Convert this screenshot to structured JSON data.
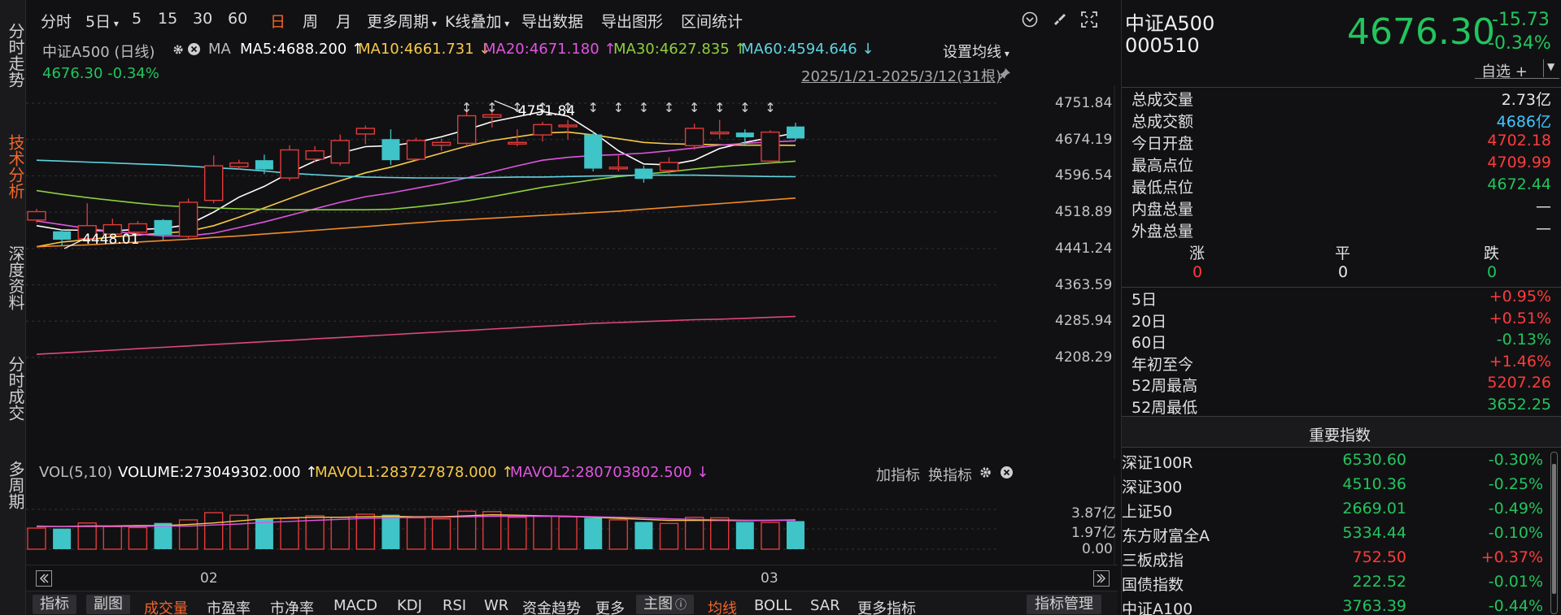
{
  "left_nav": [
    {
      "label": "分时走势"
    },
    {
      "label": "技术分析"
    },
    {
      "label": "深度资料"
    },
    {
      "label": "分时成交"
    },
    {
      "label": "多周期"
    }
  ],
  "toolbar": {
    "items": [
      "分时",
      "5日",
      "5",
      "15",
      "30",
      "60",
      "日",
      "周",
      "月",
      "更多周期",
      "K线叠加",
      "导出数据",
      "导出图形",
      "区间统计"
    ],
    "active": "日"
  },
  "chart_header": {
    "name": "中证A500 (日线)",
    "ma_label": "MA",
    "ma_items": [
      {
        "text": "MA5:4688.200 ↑",
        "color": "#ffffff"
      },
      {
        "text": "MA10:4661.731 ↓",
        "color": "#f7c948"
      },
      {
        "text": "MA20:4671.180 ↑",
        "color": "#e055e0"
      },
      {
        "text": "MA30:4627.835 ↑",
        "color": "#8fcf3c"
      },
      {
        "text": "MA60:4594.646 ↓",
        "color": "#5fd3e0"
      }
    ],
    "settings_label": "设置均线",
    "last_line": "4676.30 -0.34%",
    "range_label": "2025/1/21-2025/3/12(31根)"
  },
  "chart_data": {
    "type": "candlestick",
    "x_labels": [
      "02",
      "03"
    ],
    "y_ticks": [
      "4751.84",
      "4674.19",
      "4596.54",
      "4518.89",
      "4441.24",
      "4363.59",
      "4285.94",
      "4208.29"
    ],
    "ylim": [
      4208.29,
      4751.84
    ],
    "annotations": {
      "high": "4751.84",
      "low": "4448.01"
    },
    "candles": [
      {
        "o": 4502,
        "c": 4520,
        "h": 4526,
        "l": 4496
      },
      {
        "o": 4478,
        "c": 4460,
        "h": 4482,
        "l": 4448.01
      },
      {
        "o": 4462,
        "c": 4490,
        "h": 4538,
        "l": 4456
      },
      {
        "o": 4472,
        "c": 4492,
        "h": 4505,
        "l": 4468
      },
      {
        "o": 4476,
        "c": 4494,
        "h": 4500,
        "l": 4470
      },
      {
        "o": 4502,
        "c": 4470,
        "h": 4504,
        "l": 4458
      },
      {
        "o": 4467,
        "c": 4540,
        "h": 4548,
        "l": 4461
      },
      {
        "o": 4544,
        "c": 4618,
        "h": 4640,
        "l": 4538
      },
      {
        "o": 4616,
        "c": 4624,
        "h": 4631,
        "l": 4610
      },
      {
        "o": 4630,
        "c": 4610,
        "h": 4642,
        "l": 4600
      },
      {
        "o": 4592,
        "c": 4652,
        "h": 4662,
        "l": 4586
      },
      {
        "o": 4632,
        "c": 4650,
        "h": 4660,
        "l": 4626
      },
      {
        "o": 4624,
        "c": 4672,
        "h": 4685,
        "l": 4618
      },
      {
        "o": 4686,
        "c": 4698,
        "h": 4704,
        "l": 4664
      },
      {
        "o": 4675,
        "c": 4630,
        "h": 4696,
        "l": 4620
      },
      {
        "o": 4632,
        "c": 4672,
        "h": 4678,
        "l": 4628
      },
      {
        "o": 4662,
        "c": 4668,
        "h": 4676,
        "l": 4650
      },
      {
        "o": 4666,
        "c": 4725,
        "h": 4734,
        "l": 4660
      },
      {
        "o": 4722,
        "c": 4727,
        "h": 4751.84,
        "l": 4700
      },
      {
        "o": 4668,
        "c": 4668,
        "h": 4696,
        "l": 4660
      },
      {
        "o": 4684,
        "c": 4706,
        "h": 4712,
        "l": 4670
      },
      {
        "o": 4703,
        "c": 4705,
        "h": 4716,
        "l": 4674
      },
      {
        "o": 4685,
        "c": 4612,
        "h": 4692,
        "l": 4606
      },
      {
        "o": 4612,
        "c": 4615,
        "h": 4640,
        "l": 4606
      },
      {
        "o": 4612,
        "c": 4590,
        "h": 4618,
        "l": 4582
      },
      {
        "o": 4608,
        "c": 4625,
        "h": 4636,
        "l": 4600
      },
      {
        "o": 4661,
        "c": 4698,
        "h": 4708,
        "l": 4652
      },
      {
        "o": 4688,
        "c": 4690,
        "h": 4716,
        "l": 4675
      },
      {
        "o": 4689,
        "c": 4679,
        "h": 4696,
        "l": 4660
      },
      {
        "o": 4628,
        "c": 4690,
        "h": 4694,
        "l": 4622
      },
      {
        "o": 4702,
        "c": 4676.3,
        "h": 4709.99,
        "l": 4672.44
      }
    ],
    "ma_series": [
      {
        "name": "MA5",
        "color": "#ffffff",
        "values": [
          4490,
          4481,
          4480,
          4479,
          4482,
          4484,
          4492,
          4519,
          4551,
          4574,
          4603,
          4628,
          4645,
          4659,
          4661,
          4668,
          4680,
          4695,
          4712,
          4723,
          4734,
          4724,
          4690,
          4650,
          4622,
          4620,
          4630,
          4655,
          4668,
          4678,
          4688.2
        ]
      },
      {
        "name": "MA10",
        "color": "#f7c948",
        "values": [
          4445,
          4455,
          4460,
          4466,
          4470,
          4474,
          4478,
          4490,
          4508,
          4528,
          4548,
          4568,
          4586,
          4603,
          4615,
          4630,
          4645,
          4660,
          4672,
          4680,
          4688,
          4690,
          4684,
          4676,
          4668,
          4665,
          4664,
          4663,
          4662,
          4662,
          4661.73
        ]
      },
      {
        "name": "MA20",
        "color": "#e055e0",
        "values": [
          4500,
          4492,
          4484,
          4478,
          4472,
          4468,
          4468,
          4474,
          4486,
          4498,
          4512,
          4526,
          4540,
          4552,
          4560,
          4570,
          4580,
          4592,
          4605,
          4618,
          4630,
          4636,
          4640,
          4642,
          4645,
          4650,
          4656,
          4662,
          4666,
          4669,
          4671.18
        ]
      },
      {
        "name": "MA30",
        "color": "#8fcf3c",
        "values": [
          4565,
          4557,
          4550,
          4544,
          4538,
          4533,
          4530,
          4528,
          4526,
          4525,
          4524,
          4524,
          4524,
          4524,
          4525,
          4530,
          4536,
          4543,
          4552,
          4562,
          4572,
          4580,
          4588,
          4595,
          4600,
          4605,
          4611,
          4616,
          4620,
          4624,
          4627.84
        ]
      },
      {
        "name": "MA60",
        "color": "#5fd3e0",
        "values": [
          4630,
          4628,
          4626,
          4624,
          4622,
          4620,
          4617,
          4614,
          4611,
          4607,
          4602,
          4599,
          4596,
          4594,
          4593,
          4592,
          4592,
          4592,
          4593,
          4594,
          4594,
          4595,
          4596,
          4597,
          4598,
          4598,
          4598,
          4597,
          4596,
          4595,
          4594.65
        ]
      },
      {
        "name": "",
        "color": "#f28c28",
        "values": [
          4445,
          4447,
          4449,
          4452,
          4455,
          4458,
          4461,
          4465,
          4468,
          4472,
          4476,
          4480,
          4484,
          4488,
          4492,
          4496,
          4500,
          4503,
          4506,
          4509,
          4512,
          4515,
          4518,
          4521,
          4525,
          4529,
          4533,
          4537,
          4541,
          4545,
          4549
        ]
      },
      {
        "name": "",
        "color": "#e0487a",
        "values": [
          4215,
          4218,
          4221,
          4224,
          4227,
          4230,
          4233,
          4236,
          4239,
          4242,
          4245,
          4248,
          4251,
          4254,
          4257,
          4260,
          4263,
          4266,
          4269,
          4272,
          4275,
          4278,
          4281,
          4283,
          4285,
          4287,
          4289,
          4290,
          4292,
          4294,
          4296
        ]
      }
    ],
    "volume": {
      "label": "VOL(5,10)",
      "items": [
        {
          "text": "VOLUME:273049302.000 ↑",
          "color": "#ffffff"
        },
        {
          "text": "MAVOL1:283727878.000 ↑",
          "color": "#f7c948"
        },
        {
          "text": "MAVOL2:280703802.500 ↓",
          "color": "#e055e0"
        }
      ],
      "y_ticks": [
        "3.87亿",
        "1.97亿",
        "0.00"
      ],
      "ymax": 3.87,
      "bars": [
        2.05,
        2.0,
        2.55,
        2.2,
        2.1,
        2.55,
        2.85,
        3.55,
        3.3,
        2.95,
        3.0,
        3.25,
        3.1,
        3.4,
        3.35,
        3.05,
        2.95,
        3.7,
        3.65,
        3.1,
        3.2,
        3.15,
        3.05,
        2.85,
        2.65,
        2.5,
        3.1,
        3.05,
        2.65,
        2.6,
        2.73
      ],
      "mavol1": [
        2.2,
        2.2,
        2.25,
        2.25,
        2.3,
        2.3,
        2.4,
        2.55,
        2.75,
        2.95,
        3.05,
        3.1,
        3.1,
        3.15,
        3.2,
        3.15,
        3.15,
        3.25,
        3.35,
        3.3,
        3.25,
        3.2,
        3.1,
        3.0,
        2.9,
        2.8,
        2.8,
        2.8,
        2.78,
        2.8,
        2.84
      ],
      "mavol2": [
        2.25,
        2.2,
        2.2,
        2.2,
        2.2,
        2.25,
        2.25,
        2.35,
        2.45,
        2.6,
        2.7,
        2.8,
        2.9,
        3.0,
        3.05,
        3.1,
        3.1,
        3.15,
        3.2,
        3.2,
        3.2,
        3.2,
        3.15,
        3.1,
        3.05,
        2.95,
        2.9,
        2.85,
        2.82,
        2.8,
        2.81
      ]
    },
    "up_color": "#e43a3a",
    "down_color": "#3fc4c8"
  },
  "vol_header_right": {
    "add": "加指标",
    "swap": "换指标"
  },
  "bottom_bar": {
    "items": [
      "指标",
      "副图",
      "成交量",
      "市盈率",
      "市净率",
      "MACD",
      "KDJ",
      "RSI",
      "WR",
      "资金趋势",
      "更多",
      "主图",
      "均线",
      "BOLL",
      "SAR",
      "更多指标"
    ],
    "manage": "指标管理"
  },
  "quote": {
    "name": "中证A500",
    "code": "000510",
    "price": "4676.30",
    "change": "-15.73",
    "change_pct": "-0.34%",
    "watch_label": "自选 +"
  },
  "stats": [
    {
      "label": "总成交量",
      "value": "2.73亿",
      "color": "white"
    },
    {
      "label": "总成交额",
      "value": "4686亿",
      "color": "cyan"
    },
    {
      "label": "今日开盘",
      "value": "4702.18",
      "color": "red"
    },
    {
      "label": "最高点位",
      "value": "4709.99",
      "color": "red"
    },
    {
      "label": "最低点位",
      "value": "4672.44",
      "color": "green"
    },
    {
      "label": "内盘总量",
      "value": "—",
      "color": "white"
    },
    {
      "label": "外盘总量",
      "value": "—",
      "color": "white"
    }
  ],
  "breadth": {
    "labels": [
      "涨",
      "平",
      "跌"
    ],
    "values": [
      "0",
      "0",
      "0"
    ]
  },
  "periods": [
    {
      "label": "5日",
      "value": "+0.95%",
      "color": "red"
    },
    {
      "label": "20日",
      "value": "+0.51%",
      "color": "red"
    },
    {
      "label": "60日",
      "value": "-0.13%",
      "color": "green"
    },
    {
      "label": "年初至今",
      "value": "+1.46%",
      "color": "red"
    },
    {
      "label": "52周最高",
      "value": "5207.26",
      "color": "red"
    },
    {
      "label": "52周最低",
      "value": "3652.25",
      "color": "green"
    }
  ],
  "indices": {
    "title": "重要指数",
    "rows": [
      {
        "name": "深证100R",
        "price": "6530.60",
        "pct": "-0.30%",
        "color": "green"
      },
      {
        "name": "深证300",
        "price": "4510.36",
        "pct": "-0.25%",
        "color": "green"
      },
      {
        "name": "上证50",
        "price": "2669.01",
        "pct": "-0.49%",
        "color": "green"
      },
      {
        "name": "东方财富全A",
        "price": "5334.44",
        "pct": "-0.10%",
        "color": "green"
      },
      {
        "name": "三板成指",
        "price": "752.50",
        "pct": "+0.37%",
        "color": "red"
      },
      {
        "name": "国债指数",
        "price": "222.52",
        "pct": "-0.01%",
        "color": "green"
      },
      {
        "name": "中证A100",
        "price": "3763.39",
        "pct": "-0.44%",
        "color": "green"
      }
    ]
  }
}
